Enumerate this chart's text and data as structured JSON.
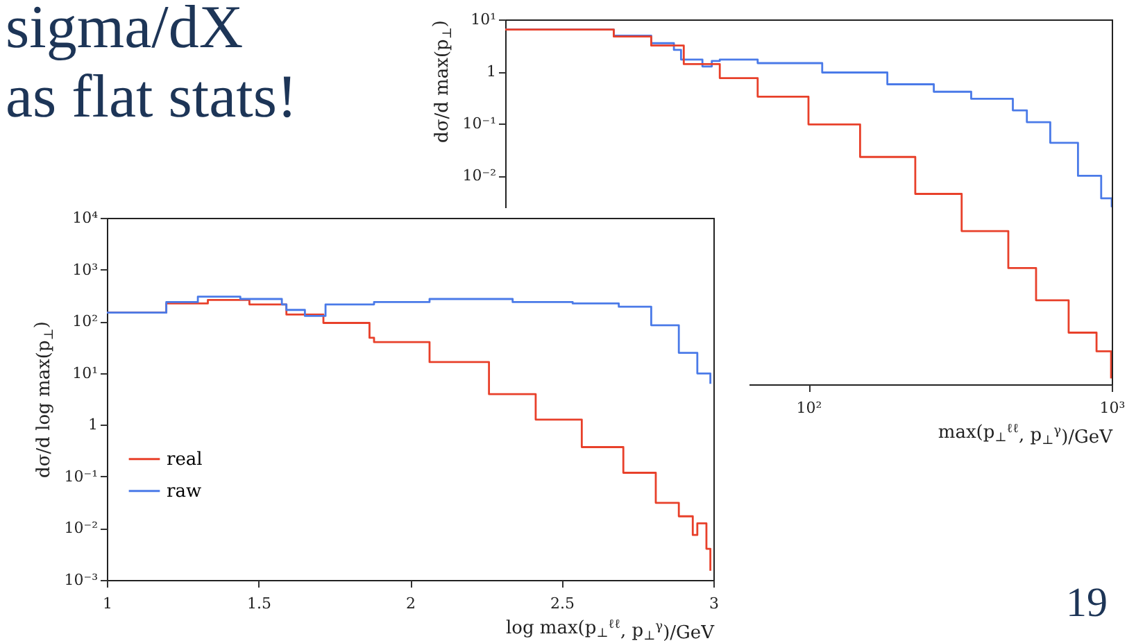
{
  "chart_data": [
    {
      "type": "step",
      "ylabel": "dσ/d max(p$_{⊥}$)",
      "xlabel": "max(p$_{⊥}$$^{ℓℓ}$, p$_{⊥}$$^{γ}$)/GeV",
      "log": "xy",
      "xlim": [
        10,
        1000
      ],
      "ylim": [
        1e-06,
        10
      ],
      "xticks": [
        {
          "value": 100,
          "label": "10²"
        },
        {
          "value": 1000,
          "label": "10³"
        }
      ],
      "yticks": [
        {
          "value": 10,
          "label": "10¹"
        },
        1,
        {
          "value": 0.1,
          "label": "10⁻¹"
        },
        {
          "value": 0.01,
          "label": "10⁻²"
        }
      ],
      "annotations": [
        "sigma/dX",
        "as flat stats!",
        "19"
      ],
      "series": [
        {
          "color": "#4a7ae8",
          "x": [
            10,
            16,
            22.8,
            30.3,
            36,
            38,
            44.7,
            48,
            51,
            68,
            111,
            182,
            259,
            344,
            472,
            525,
            627,
            774,
            923,
            1000
          ],
          "values": [
            6.4,
            6.4,
            4.9,
            3.5,
            2.6,
            1.7,
            1.25,
            1.6,
            1.7,
            1.45,
            0.96,
            0.57,
            0.41,
            0.3,
            0.18,
            0.107,
            0.043,
            0.01,
            0.0037,
            0.0025
          ]
        },
        {
          "color": "#e8402a",
          "x": [
            10,
            16,
            22.8,
            30.3,
            38.8,
            51,
            68,
            100,
            148,
            225,
            320,
            456,
            563,
            721,
            891,
            995
          ],
          "values": [
            6.4,
            6.4,
            4.7,
            3.15,
            1.39,
            0.75,
            0.33,
            0.097,
            0.023,
            0.0045,
            0.00087,
            0.00017,
            4.1e-05,
            9.8e-06,
            4.3e-06,
            1.3e-06
          ]
        }
      ]
    },
    {
      "type": "step",
      "ylabel": "dσ/d log max(p$_{⊥}$)",
      "xlabel": "log max(p$_{⊥}$$^{ℓℓ}$, p$_{⊥}$$^{γ}$)/GeV",
      "log": "y",
      "xlim": [
        1,
        3
      ],
      "ylim": [
        0.001,
        10000
      ],
      "legend": "left",
      "xticks": [
        1,
        1.5,
        2,
        2.5,
        3
      ],
      "yticks": [
        {
          "value": 10000,
          "label": "10⁴"
        },
        {
          "value": 1000,
          "label": "10³"
        },
        {
          "value": 100,
          "label": "10²"
        },
        {
          "value": 10,
          "label": "10¹"
        },
        1,
        {
          "value": 0.1,
          "label": "10⁻¹"
        },
        {
          "value": 0.01,
          "label": "10⁻²"
        },
        {
          "value": 0.001,
          "label": "10⁻³"
        }
      ],
      "series": [
        {
          "name": "real",
          "color": "#e8402a",
          "x": [
            1,
            1.196,
            1.333,
            1.47,
            1.592,
            1.714,
            1.866,
            1.881,
            2.064,
            2.26,
            2.414,
            2.566,
            2.703,
            2.81,
            2.886,
            2.932,
            2.947,
            2.977,
            2.99
          ],
          "values": [
            147,
            221,
            259,
            212,
            135,
            93,
            48,
            39.6,
            16.3,
            3.9,
            1.26,
            0.37,
            0.118,
            0.031,
            0.017,
            0.0074,
            0.0124,
            0.004,
            0.0015
          ]
        },
        {
          "name": "raw",
          "color": "#4a7ae8",
          "x": [
            1,
            1.196,
            1.3,
            1.44,
            1.577,
            1.592,
            1.653,
            1.721,
            1.881,
            2.064,
            2.338,
            2.536,
            2.688,
            2.795,
            2.886,
            2.947,
            2.99
          ],
          "values": [
            147,
            235,
            300,
            270,
            212,
            166,
            127,
            212,
            235,
            270,
            235,
            221,
            191,
            84,
            24.6,
            9.8,
            6.2
          ]
        }
      ]
    }
  ]
}
